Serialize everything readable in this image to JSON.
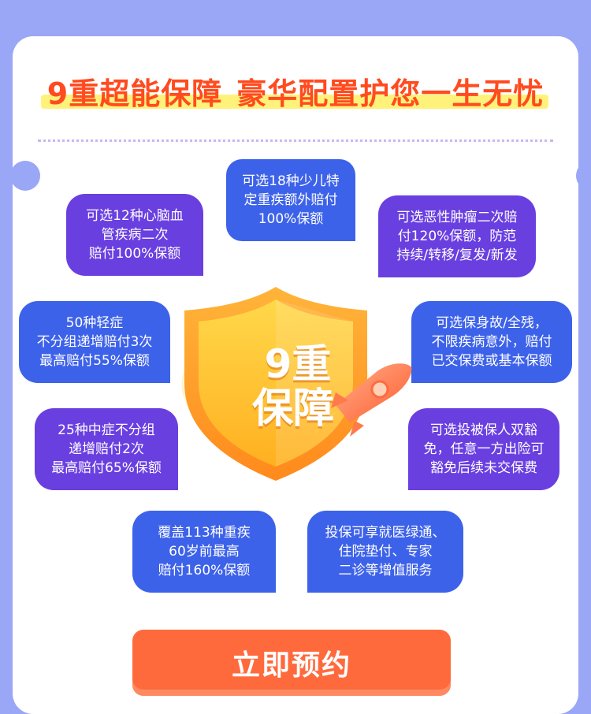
{
  "headline": {
    "part1": "9重超能保障",
    "part2": "豪华配置护您一生无忧"
  },
  "shield": {
    "line1": "9重",
    "line2": "保障"
  },
  "features": [
    {
      "lines": [
        "可选18种少儿特",
        "定重疾额外赔付",
        "100%保额"
      ]
    },
    {
      "lines": [
        "可选12种心脑血",
        "管疾病二次",
        "赔付100%保额"
      ]
    },
    {
      "lines": [
        "可选恶性肿瘤二次赔",
        "付120%保额，防范",
        "持续/转移/复发/新发"
      ]
    },
    {
      "lines": [
        "50种轻症",
        "不分组递增赔付3次",
        "最高赔付55%保额"
      ]
    },
    {
      "lines": [
        "可选保身故/全残，",
        "不限疾病意外，赔付",
        "已交保费或基本保额"
      ]
    },
    {
      "lines": [
        "25种中症不分组",
        "递增赔付2次",
        "最高赔付65%保额"
      ]
    },
    {
      "lines": [
        "可选投被保人双豁",
        "免，任意一方出险可",
        "豁免后续未交保费"
      ]
    },
    {
      "lines": [
        "覆盖113种重疾",
        "60岁前最高",
        "赔付160%保额"
      ]
    },
    {
      "lines": [
        "投保可享就医绿通、",
        "住院垫付、专家",
        "二诊等增值服务"
      ]
    }
  ],
  "cta_label": "立即预约",
  "colors": {
    "background": "#9aa6f6",
    "headline": "#ff4b1f",
    "bubble_purple": "#6a3fe0",
    "bubble_blue": "#3d62ea",
    "cta": "#ff6a3d",
    "shield_gold": "#ffc928"
  },
  "icons": [
    "shield-icon",
    "rocket-icon"
  ]
}
